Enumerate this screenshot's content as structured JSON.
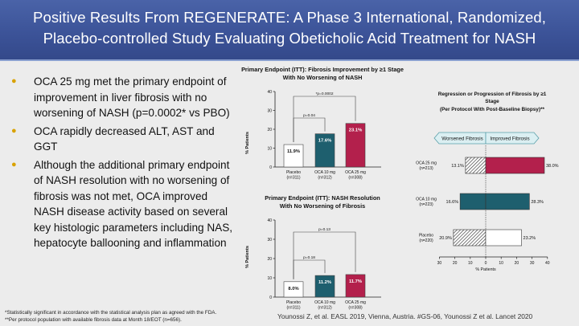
{
  "header": {
    "title_line1": "Positive Results From REGENERATE: A Phase 3 International, Randomized,",
    "title_line2": "Placebo-controlled Study Evaluating Obeticholic Acid Treatment for NASH"
  },
  "bullets": [
    "OCA 25 mg met the primary endpoint of improvement in liver fibrosis with no worsening of NASH (p=0.0002* vs PBO)",
    "OCA rapidly decreased ALT, AST and GGT",
    "Although the additional primary endpoint of NASH resolution with no worsening of fibrosis was not met, OCA improved NASH disease activity based on several key histologic parameters including NAS, hepatocyte ballooning and inflammation"
  ],
  "footnotes": {
    "line1": "*Statistically significant in accordance with the statistical analysis plan as agreed with the FDA.",
    "line2": "**Per protocol population with available fibrosis data at Month 18/EOT (n=656)."
  },
  "reference": "Younossi Z, et al. EASL 2019, Vienna, Austria. #GS-06, Younossi Z et al. Lancet 2020",
  "colors": {
    "placebo": "#ffffff",
    "oca10": "#1e5f6e",
    "oca25": "#b3204c",
    "header": "#3b5297",
    "bullet": "#d9a200"
  },
  "chart_data": [
    {
      "type": "bar",
      "title_line1": "Primary Endpoint (ITT): Fibrosis Improvement by ≥1 Stage",
      "title_line2": "With No Worsening of NASH",
      "ylabel": "% Patients",
      "ylim": [
        0,
        40
      ],
      "yticks": [
        "0",
        "10",
        "20",
        "30",
        "40"
      ],
      "categories": [
        {
          "line1": "Placebo",
          "line2": "(n=311)"
        },
        {
          "line1": "OCA 10 mg",
          "line2": "(n=312)"
        },
        {
          "line1": "OCA 25 mg",
          "line2": "(n=308)"
        }
      ],
      "values": [
        11.9,
        17.6,
        23.1
      ],
      "value_labels": [
        "11.9%",
        "17.6%",
        "23.1%"
      ],
      "annotations": [
        {
          "from": 0,
          "to": 1,
          "label": "p=0.04"
        },
        {
          "from": 0,
          "to": 2,
          "label": "*p=0.0002"
        }
      ]
    },
    {
      "type": "bar",
      "title_line1": "Primary Endpoint (ITT): NASH Resolution",
      "title_line2": "With No Worsening of Fibrosis",
      "ylabel": "% Patients",
      "ylim": [
        0,
        40
      ],
      "yticks": [
        "0",
        "10",
        "20",
        "30",
        "40"
      ],
      "categories": [
        {
          "line1": "Placebo",
          "line2": "(n=311)"
        },
        {
          "line1": "OCA 10 mg",
          "line2": "(n=312)"
        },
        {
          "line1": "OCA 25 mg",
          "line2": "(n=308)"
        }
      ],
      "values": [
        8.0,
        11.2,
        11.7
      ],
      "value_labels": [
        "8.0%",
        "11.2%",
        "11.7%"
      ],
      "annotations": [
        {
          "from": 0,
          "to": 1,
          "label": "p=0.18"
        },
        {
          "from": 0,
          "to": 2,
          "label": "p=0.13"
        }
      ]
    },
    {
      "type": "bar",
      "orientation": "horizontal-diverging",
      "title_line1": "Regression or Progression of Fibrosis by ≥1",
      "title_line2": "Stage",
      "title_line3": "(Per Protocol With Post-Baseline Biopsy)**",
      "worsened_label": "Worsened Fibrosis",
      "improved_label": "Improved Fibrosis",
      "xlabel": "% Patients",
      "xlim": [
        -30,
        40
      ],
      "xticks": [
        "30",
        "20",
        "10",
        "0",
        "10",
        "20",
        "30",
        "40"
      ],
      "xtick_values": [
        -30,
        -20,
        -10,
        0,
        10,
        20,
        30,
        40
      ],
      "groups": [
        {
          "line1": "OCA 25 mg",
          "line2": "(n=213)",
          "worsened": 13.1,
          "improved": 38.0,
          "worsened_label": "13.1%",
          "improved_label": "38.0%"
        },
        {
          "line1": "OCA 10 mg",
          "line2": "(n=223)",
          "worsened": 16.6,
          "improved": 28.3,
          "worsened_label": "16.6%",
          "improved_label": "28.3%"
        },
        {
          "line1": "Placebo",
          "line2": "(n=220)",
          "worsened": 20.9,
          "improved": 23.2,
          "worsened_label": "20.9%",
          "improved_label": "23.2%"
        }
      ]
    }
  ]
}
